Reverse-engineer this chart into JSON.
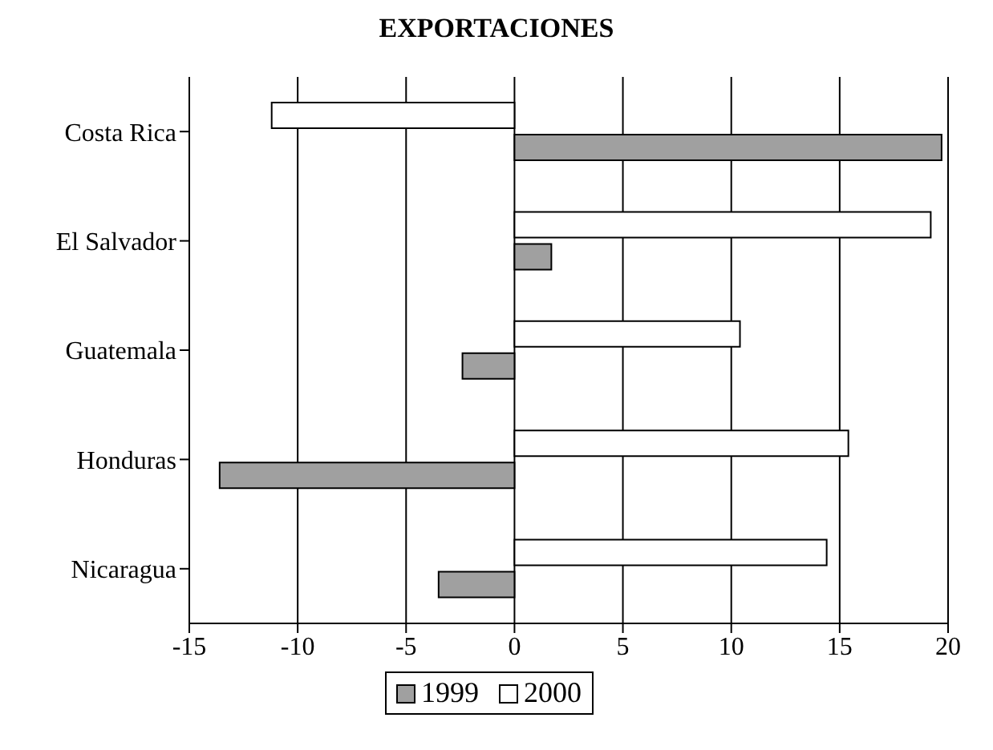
{
  "chart_data": {
    "type": "bar",
    "orientation": "horizontal",
    "title": "EXPORTACIONES",
    "categories": [
      "Costa Rica",
      "El Salvador",
      "Guatemala",
      "Honduras",
      "Nicaragua"
    ],
    "series": [
      {
        "name": "1999",
        "color": "#a0a0a0",
        "values": [
          19.7,
          1.7,
          -2.4,
          -13.6,
          -3.5
        ]
      },
      {
        "name": "2000",
        "color": "#ffffff",
        "values": [
          -11.2,
          19.2,
          10.4,
          15.4,
          14.4
        ]
      }
    ],
    "xlim": [
      -15,
      20
    ],
    "xticks": [
      -15,
      -10,
      -5,
      0,
      5,
      10,
      15,
      20
    ],
    "grid": "x",
    "legend": "bottom"
  }
}
